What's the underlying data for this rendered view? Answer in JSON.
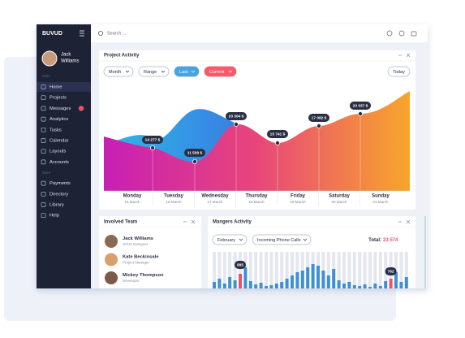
{
  "sidebar": {
    "brand": "BUVUD",
    "user": {
      "first": "Jack",
      "last": "Williams"
    },
    "sections": [
      {
        "label": "Main",
        "items": [
          "Home",
          "Projects",
          "Messages",
          "Analytics",
          "Tasks",
          "Calendar",
          "Layouts",
          "Accounts"
        ]
      },
      {
        "label": "More",
        "items": [
          "Payments",
          "Directory",
          "Library",
          "Help"
        ]
      }
    ]
  },
  "header": {
    "search": "Search ..."
  },
  "project_activity": {
    "title": "Project Activity",
    "filters": [
      "Month",
      "Range",
      "Last",
      "Current"
    ],
    "today": "Today",
    "points": [
      "14 277 $",
      "11 509 $",
      "20 304 $",
      "15 741 $",
      "17 082 $",
      "20 037 $"
    ],
    "days": [
      {
        "day": "Monday",
        "date": "15 March"
      },
      {
        "day": "Tuesday",
        "date": "16 March"
      },
      {
        "day": "Wednesday",
        "date": "17 March"
      },
      {
        "day": "Thursday",
        "date": "18 March"
      },
      {
        "day": "Friday",
        "date": "19 March"
      },
      {
        "day": "Saturday",
        "date": "20 March"
      },
      {
        "day": "Sunday",
        "date": "21 March"
      }
    ]
  },
  "team": {
    "title": "Involved Team",
    "members": [
      {
        "name": "Jack Williams",
        "role": "UI/UX Designer"
      },
      {
        "name": "Kate Beckinsale",
        "role": "Project Manager"
      },
      {
        "name": "Mickey Thompson",
        "role": "Developer"
      }
    ]
  },
  "managers": {
    "title": "Mangers Activity",
    "month": "February",
    "metric": "Incoming Phone Calls",
    "total_label": "Total:",
    "total": "23 574",
    "highlights": [
      "885",
      "762"
    ]
  }
}
